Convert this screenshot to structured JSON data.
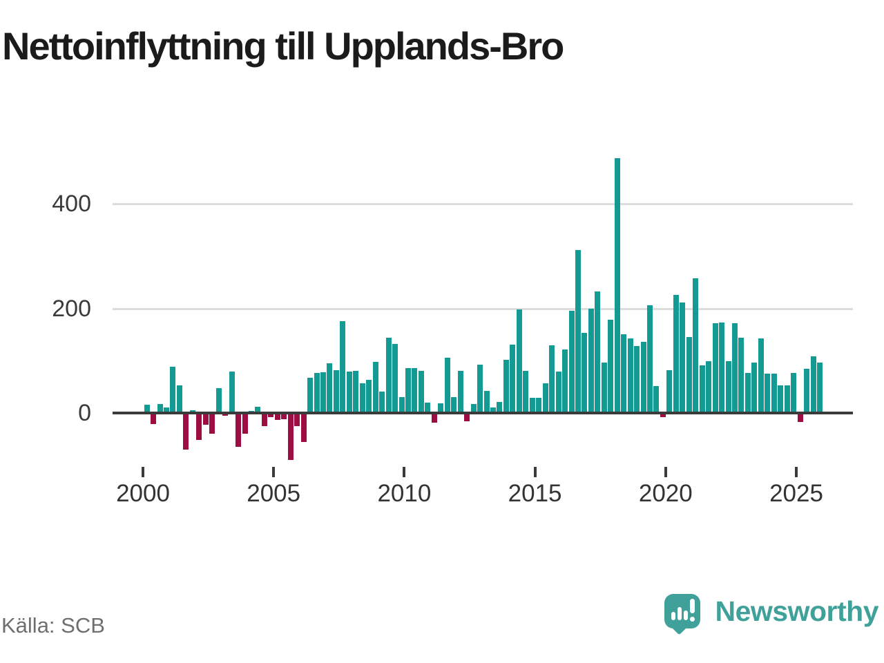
{
  "title": "Nettoinflyttning till Upplands-Bro",
  "source": "Källa: SCB",
  "branding": {
    "name": "Newsworthy"
  },
  "colors": {
    "positive_bar": "#139a92",
    "negative_bar": "#9e0d41",
    "brand_teal": "#3fa19a",
    "gridline": "#dcdcdc",
    "axis_line": "#3b3b3b",
    "tick_text": "#333333",
    "title_text": "#1b1b1b",
    "source_text": "#6f6f6f"
  },
  "chart_data": {
    "type": "bar",
    "title": "Nettoinflyttning till Upplands-Bro",
    "xlabel": "",
    "ylabel": "",
    "unit": "persons per quarter (net migration)",
    "x_start": "2000-Q1",
    "x_end": "2025-Q4",
    "xticks": [
      "2000",
      "2005",
      "2010",
      "2015",
      "2020",
      "2025"
    ],
    "yticks": [
      0,
      200,
      400
    ],
    "ytick_labels": [
      "0",
      "200",
      "400"
    ],
    "ylim": [
      -110,
      510
    ],
    "grid": "horizontal",
    "legend": "none",
    "color_rule": "teal when positive, dark red when negative",
    "series_by_year": [
      {
        "year": 2000,
        "values": [
          16,
          -21,
          17,
          10
        ]
      },
      {
        "year": 2001,
        "values": [
          88,
          53,
          -70,
          5
        ]
      },
      {
        "year": 2002,
        "values": [
          -51,
          -23,
          -40,
          48
        ]
      },
      {
        "year": 2003,
        "values": [
          -5,
          79,
          -65,
          -40
        ]
      },
      {
        "year": 2004,
        "values": [
          4,
          12,
          -25,
          -8
        ]
      },
      {
        "year": 2005,
        "values": [
          -13,
          -12,
          -90,
          -25
        ]
      },
      {
        "year": 2006,
        "values": [
          -55,
          67,
          77,
          78
        ]
      },
      {
        "year": 2007,
        "values": [
          95,
          82,
          175,
          79
        ]
      },
      {
        "year": 2008,
        "values": [
          81,
          57,
          64,
          98
        ]
      },
      {
        "year": 2009,
        "values": [
          41,
          144,
          132,
          30
        ]
      },
      {
        "year": 2010,
        "values": [
          86,
          86,
          81,
          20
        ]
      },
      {
        "year": 2011,
        "values": [
          -19,
          18,
          106,
          31
        ]
      },
      {
        "year": 2012,
        "values": [
          81,
          -16,
          17,
          92
        ]
      },
      {
        "year": 2013,
        "values": [
          42,
          10,
          21,
          102
        ]
      },
      {
        "year": 2014,
        "values": [
          131,
          198,
          81,
          29
        ]
      },
      {
        "year": 2015,
        "values": [
          29,
          57,
          130,
          79
        ]
      },
      {
        "year": 2016,
        "values": [
          122,
          195,
          312,
          153
        ]
      },
      {
        "year": 2017,
        "values": [
          199,
          233,
          97,
          178
        ]
      },
      {
        "year": 2018,
        "values": [
          487,
          150,
          143,
          128
        ]
      },
      {
        "year": 2019,
        "values": [
          136,
          206,
          51,
          -8
        ]
      },
      {
        "year": 2020,
        "values": [
          82,
          226,
          211,
          145
        ]
      },
      {
        "year": 2021,
        "values": [
          257,
          91,
          99,
          172
        ]
      },
      {
        "year": 2022,
        "values": [
          173,
          99,
          172,
          144
        ]
      },
      {
        "year": 2023,
        "values": [
          76,
          96,
          142,
          75
        ]
      },
      {
        "year": 2024,
        "values": [
          75,
          53,
          53,
          76
        ]
      },
      {
        "year": 2025,
        "values": [
          -17,
          84,
          108,
          96
        ]
      }
    ]
  }
}
